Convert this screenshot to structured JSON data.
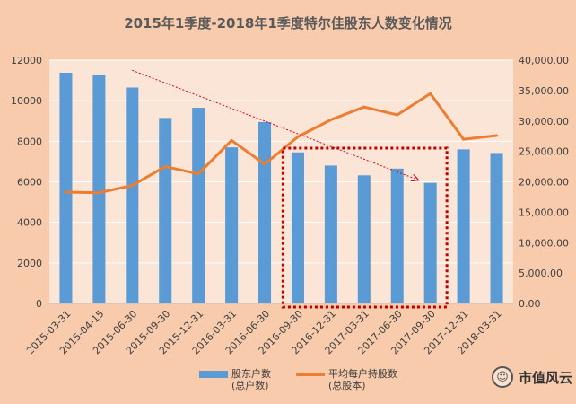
{
  "chart_data": {
    "type": "bar+line",
    "title": "2015年1季度-2018年1季度特尔佳股东人数变化情况",
    "categories": [
      "2015-03-31",
      "2015-04-15",
      "2015-06-30",
      "2015-09-30",
      "2015-12-31",
      "2016-03-31",
      "2016-06-30",
      "2016-09-30",
      "2016-12-31",
      "2017-03-31",
      "2017-06-30",
      "2017-09-30",
      "2017-12-31",
      "2018-03-31"
    ],
    "series": [
      {
        "name": "股东户数(总户数)",
        "type": "bar",
        "axis": "left",
        "color": "#5b9bd5",
        "values": [
          11380,
          11280,
          10650,
          9150,
          9650,
          7700,
          8950,
          7450,
          6800,
          6320,
          6650,
          5950,
          7600,
          7420
        ]
      },
      {
        "name": "平均每户持股数(总股本)",
        "type": "line",
        "axis": "right",
        "color": "#ed7d31",
        "values": [
          18300,
          18200,
          19400,
          22500,
          21300,
          26800,
          22900,
          27400,
          30200,
          32300,
          31000,
          34500,
          27000,
          27600
        ]
      }
    ],
    "y_left": {
      "min": 0,
      "max": 12000,
      "ticks": [
        0,
        2000,
        4000,
        6000,
        8000,
        10000,
        12000
      ],
      "tick_labels": [
        "0",
        "2000",
        "4000",
        "6000",
        "8000",
        "10000",
        "12000"
      ]
    },
    "y_right": {
      "min": 0,
      "max": 40000,
      "ticks": [
        0,
        5000,
        10000,
        15000,
        20000,
        25000,
        30000,
        35000,
        40000
      ],
      "tick_labels": [
        "0.00",
        "5,000.00",
        "10,000.00",
        "15,000.00",
        "20,000.00",
        "25,000.00",
        "30,000.00",
        "35,000.00",
        "40,000.00"
      ]
    },
    "annotations": {
      "trend_arrow": {
        "from_category": "2015-06-30",
        "from_value": 11500,
        "to_category": "2017-09-30",
        "to_value": 6100,
        "style": "dotted",
        "color": "#e0001b"
      },
      "highlight_box": {
        "from_category": "2016-09-30",
        "to_category": "2017-09-30",
        "style": "dotted",
        "color": "#c00000"
      }
    },
    "legend": {
      "bar_label_line1": "股东户数",
      "bar_label_line2": "(总户数)",
      "line_label_line1": "平均每户持股数",
      "line_label_line2": "(总股本)",
      "position": "bottom"
    }
  },
  "watermark": {
    "text": "市值风云"
  }
}
